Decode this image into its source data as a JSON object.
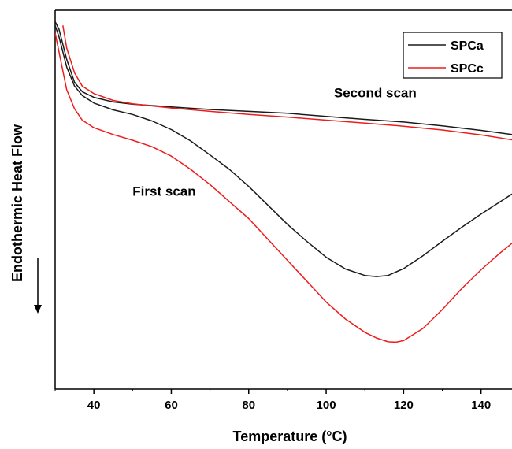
{
  "chart_data": {
    "type": "line",
    "title": "",
    "xlabel": "Temperature (°C)",
    "ylabel": "Endothermic Heat Flow",
    "y_direction_arrow": "down",
    "xlim": [
      30,
      148
    ],
    "ylim": [
      0,
      1
    ],
    "x_ticks": [
      40,
      60,
      80,
      100,
      120,
      140
    ],
    "y_ticks_shown": false,
    "grid": false,
    "legend": {
      "position": "top-right",
      "entries": [
        "SPCa",
        "SPCc"
      ]
    },
    "annotations": [
      {
        "text": "Second scan",
        "x": 102,
        "y": 0.77
      },
      {
        "text": "First scan",
        "x": 50,
        "y": 0.51
      }
    ],
    "series": [
      {
        "name": "SPCa",
        "scan": "first",
        "color": "#1a1a1a",
        "x": [
          30,
          31,
          33,
          35,
          37,
          40,
          45,
          50,
          55,
          60,
          65,
          70,
          75,
          80,
          85,
          90,
          95,
          100,
          105,
          110,
          113,
          116,
          120,
          125,
          130,
          135,
          140,
          145,
          148
        ],
        "y": [
          0.96,
          0.93,
          0.85,
          0.8,
          0.775,
          0.755,
          0.737,
          0.725,
          0.708,
          0.685,
          0.655,
          0.618,
          0.58,
          0.535,
          0.485,
          0.435,
          0.39,
          0.348,
          0.317,
          0.3,
          0.297,
          0.3,
          0.318,
          0.352,
          0.39,
          0.427,
          0.462,
          0.495,
          0.515
        ]
      },
      {
        "name": "SPCc",
        "scan": "first",
        "color": "#ee1c1c",
        "x": [
          30,
          31,
          33,
          35,
          37,
          40,
          45,
          50,
          55,
          60,
          65,
          70,
          75,
          80,
          85,
          90,
          95,
          100,
          105,
          110,
          113,
          116,
          118,
          120,
          125,
          130,
          135,
          140,
          145,
          148
        ],
        "y": [
          0.94,
          0.89,
          0.79,
          0.74,
          0.71,
          0.69,
          0.672,
          0.657,
          0.64,
          0.615,
          0.58,
          0.54,
          0.495,
          0.45,
          0.395,
          0.34,
          0.285,
          0.23,
          0.185,
          0.15,
          0.135,
          0.125,
          0.124,
          0.128,
          0.16,
          0.21,
          0.265,
          0.315,
          0.36,
          0.385
        ]
      },
      {
        "name": "SPCa",
        "scan": "second",
        "color": "#1a1a1a",
        "x": [
          30,
          31,
          33,
          35,
          37,
          40,
          45,
          50,
          60,
          70,
          80,
          90,
          100,
          110,
          120,
          130,
          140,
          148
        ],
        "y": [
          0.97,
          0.95,
          0.87,
          0.81,
          0.785,
          0.77,
          0.758,
          0.752,
          0.745,
          0.738,
          0.733,
          0.728,
          0.72,
          0.712,
          0.705,
          0.695,
          0.683,
          0.672
        ]
      },
      {
        "name": "SPCc",
        "scan": "second",
        "color": "#ee1c1c",
        "x": [
          32,
          33,
          35,
          37,
          40,
          45,
          50,
          60,
          70,
          80,
          90,
          100,
          110,
          120,
          130,
          140,
          148
        ],
        "y": [
          0.96,
          0.9,
          0.835,
          0.8,
          0.78,
          0.762,
          0.753,
          0.742,
          0.733,
          0.725,
          0.718,
          0.71,
          0.702,
          0.694,
          0.684,
          0.671,
          0.658
        ]
      }
    ]
  }
}
